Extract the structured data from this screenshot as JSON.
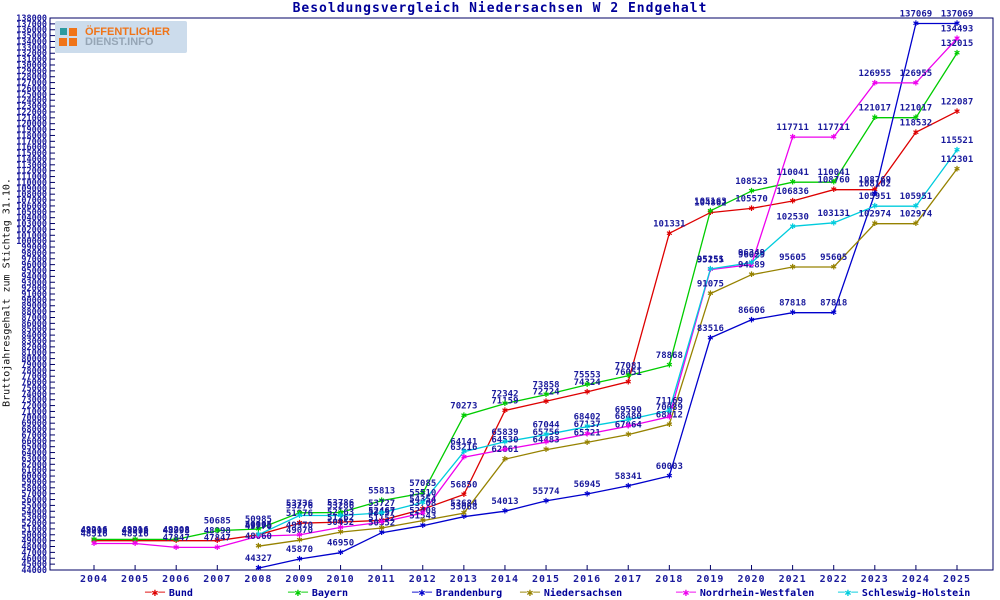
{
  "logo": {
    "line1": "ÖFFENTLICHER",
    "line2": "DIENST.INFO"
  },
  "chart_data": {
    "type": "line",
    "title": "Besoldungsvergleich Niedersachsen W 2 Endgehalt",
    "ylabel": "Bruttojahresgehalt zum Stichtag 31.10.",
    "xlabel": "",
    "x": [
      2004,
      2005,
      2006,
      2007,
      2008,
      2009,
      2010,
      2011,
      2012,
      2013,
      2014,
      2015,
      2016,
      2017,
      2018,
      2019,
      2020,
      2021,
      2022,
      2023,
      2024,
      2025
    ],
    "ylim": [
      44000,
      138000
    ],
    "ytick_step": 1000,
    "grid": false,
    "legend_position": "bottom",
    "marker": "star",
    "label_color": "#1a1a9c",
    "axis_color": "#000066",
    "series": [
      {
        "name": "Bund",
        "color": "#dd0000",
        "values": [
          48998,
          48998,
          48998,
          48998,
          49995,
          51976,
          52163,
          52467,
          54354,
          56850,
          71159,
          72724,
          74324,
          76051,
          101331,
          104862,
          105570,
          106836,
          108760,
          108769,
          118532,
          122087
        ]
      },
      {
        "name": "Bayern",
        "color": "#00cc00",
        "values": [
          49216,
          49216,
          49208,
          50685,
          50985,
          53736,
          53786,
          55813,
          57085,
          70273,
          72342,
          73858,
          75553,
          77081,
          78868,
          105163,
          108523,
          110041,
          110041,
          121017,
          121017,
          132015
        ]
      },
      {
        "name": "Brandenburg",
        "color": "#0000cc",
        "values": [
          null,
          null,
          null,
          null,
          44327,
          45870,
          46950,
          50352,
          51543,
          53068,
          54013,
          55774,
          56945,
          58341,
          60003,
          83516,
          86606,
          87818,
          87818,
          108102,
          137069,
          137069
        ]
      },
      {
        "name": "Niedersachsen",
        "color": "#968200",
        "values": [
          null,
          null,
          null,
          null,
          48060,
          49070,
          50452,
          51152,
          52408,
          53684,
          62861,
          64483,
          65721,
          67064,
          68812,
          91075,
          94289,
          95605,
          95605,
          102974,
          102974,
          112301
        ]
      },
      {
        "name": "Nordrhein-Westfalen",
        "color": "#ee00ee",
        "values": [
          48516,
          48516,
          47847,
          47847,
          49770,
          49970,
          51262,
          52157,
          53708,
          63216,
          64530,
          65756,
          67137,
          68480,
          70089,
          95155,
          96029,
          117711,
          117711,
          126955,
          126955,
          134493
        ]
      },
      {
        "name": "Schleswig-Holstein",
        "color": "#00ccdd",
        "values": [
          null,
          null,
          null,
          null,
          50005,
          53276,
          53286,
          53727,
          55510,
          64141,
          65839,
          67044,
          68402,
          69590,
          71169,
          95251,
          96349,
          102530,
          103131,
          105951,
          105951,
          115521
        ]
      }
    ]
  }
}
